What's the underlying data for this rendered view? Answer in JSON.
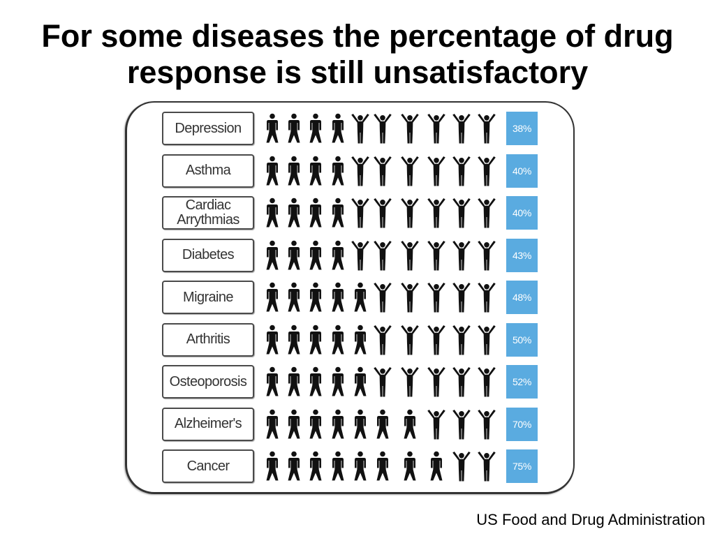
{
  "slide": {
    "title": "For some diseases the percentage of drug response is still unsatisfactory",
    "source": "US Food and Drug Administration"
  },
  "icons": {
    "person_arms_down": "person-arms-down-icon",
    "person_arms_up": "person-arms-up-icon"
  },
  "colors": {
    "percent_box": "#5aabe0",
    "percent_text": "#ffffff",
    "figure": "#111111",
    "label_text": "#333333",
    "frame_border": "#333333"
  },
  "chart_data": {
    "type": "bar",
    "orientation": "horizontal",
    "categories": [
      "Depression",
      "Asthma",
      "Cardiac Arrythmias",
      "Diabetes",
      "Migraine",
      "Arthritis",
      "Osteoporosis",
      "Alzheimer's",
      "Cancer"
    ],
    "values": [
      38,
      40,
      40,
      43,
      48,
      50,
      52,
      70,
      75
    ],
    "data_labels": [
      "38%",
      "40%",
      "40%",
      "43%",
      "48%",
      "50%",
      "52%",
      "70%",
      "75%"
    ]
  }
}
